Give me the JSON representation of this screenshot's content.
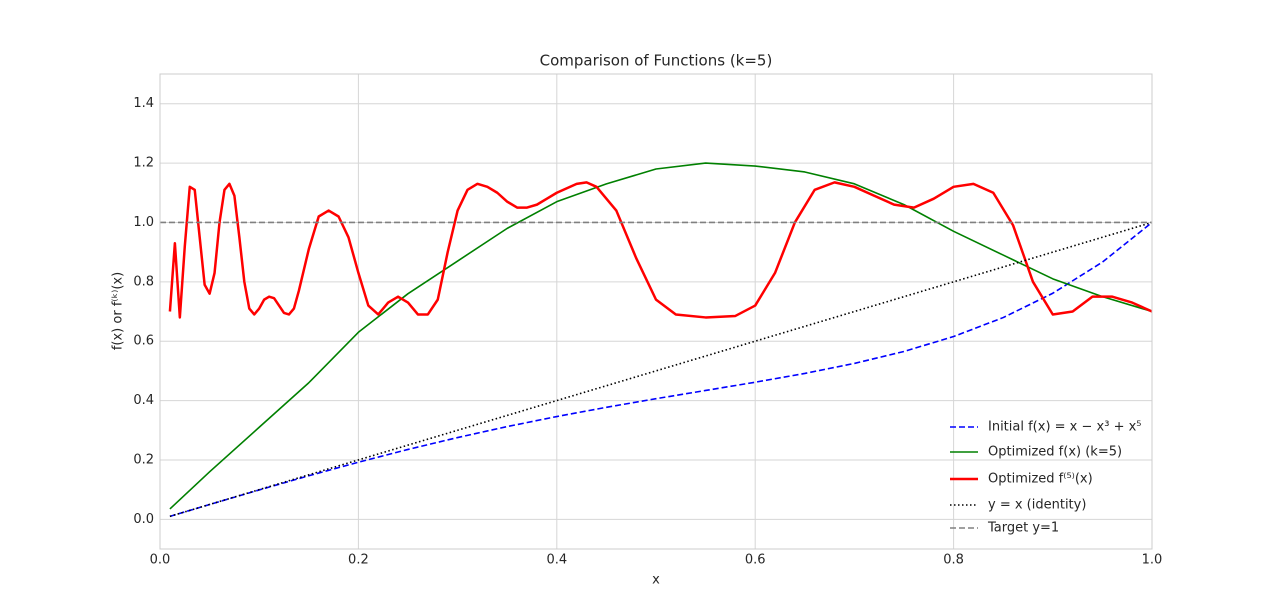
{
  "chart_data": {
    "type": "line",
    "title": "Comparison of Functions (k=5)",
    "x_label": "x",
    "y_label": "f(x) or f⁽ᵏ⁾(x)",
    "xlim": [
      0,
      1
    ],
    "ylim": [
      -0.1,
      1.5
    ],
    "xticks": [
      {
        "value": 0,
        "label": "0.0"
      },
      0.2,
      0.4,
      0.6,
      0.8,
      {
        "value": 1,
        "label": "1.0"
      }
    ],
    "yticks": [
      {
        "value": 0,
        "label": "0.0"
      },
      0.2,
      0.4,
      0.6,
      0.8,
      {
        "value": 1,
        "label": "1.0"
      },
      1.2,
      1.4
    ],
    "grid": true,
    "legend": "lower right",
    "series": [
      {
        "name": "Initial f(x) = x − x³ + x⁵",
        "color": "#0000ff",
        "linestyle": "dashed",
        "linewidth": 1.6,
        "x": [
          0.01,
          0.05,
          0.1,
          0.15,
          0.2,
          0.25,
          0.3,
          0.35,
          0.4,
          0.45,
          0.5,
          0.55,
          0.6,
          0.65,
          0.7,
          0.75,
          0.8,
          0.85,
          0.9,
          0.95,
          1.0
        ],
        "values": [
          0.01,
          0.0499,
          0.099,
          0.1467,
          0.1923,
          0.2354,
          0.2754,
          0.3124,
          0.3462,
          0.3773,
          0.4063,
          0.434,
          0.4618,
          0.4914,
          0.5251,
          0.5654,
          0.6157,
          0.6796,
          0.7615,
          0.8664,
          1.0
        ]
      },
      {
        "name": "Optimized f(x) (k=5)",
        "color": "#008000",
        "linestyle": "solid",
        "linewidth": 1.6,
        "x": [
          0.01,
          0.05,
          0.1,
          0.15,
          0.2,
          0.25,
          0.3,
          0.35,
          0.4,
          0.45,
          0.5,
          0.55,
          0.6,
          0.65,
          0.7,
          0.75,
          0.8,
          0.85,
          0.9,
          0.95,
          1.0
        ],
        "values": [
          0.035,
          0.16,
          0.31,
          0.46,
          0.63,
          0.76,
          0.87,
          0.98,
          1.07,
          1.13,
          1.18,
          1.2,
          1.19,
          1.17,
          1.13,
          1.06,
          0.97,
          0.89,
          0.81,
          0.75,
          0.7
        ]
      },
      {
        "name": "Optimized f⁽⁵⁾(x)",
        "color": "#ff0000",
        "linestyle": "solid",
        "linewidth": 2.5,
        "x": [
          0.01,
          0.015,
          0.02,
          0.025,
          0.03,
          0.035,
          0.04,
          0.045,
          0.05,
          0.055,
          0.06,
          0.065,
          0.07,
          0.075,
          0.08,
          0.085,
          0.09,
          0.095,
          0.1,
          0.105,
          0.11,
          0.115,
          0.12,
          0.125,
          0.13,
          0.135,
          0.14,
          0.15,
          0.16,
          0.17,
          0.18,
          0.19,
          0.2,
          0.21,
          0.22,
          0.23,
          0.24,
          0.25,
          0.26,
          0.27,
          0.28,
          0.29,
          0.3,
          0.31,
          0.32,
          0.33,
          0.34,
          0.35,
          0.36,
          0.37,
          0.38,
          0.39,
          0.4,
          0.42,
          0.43,
          0.44,
          0.46,
          0.48,
          0.5,
          0.52,
          0.55,
          0.58,
          0.6,
          0.62,
          0.64,
          0.66,
          0.68,
          0.7,
          0.72,
          0.74,
          0.76,
          0.78,
          0.8,
          0.82,
          0.84,
          0.86,
          0.88,
          0.9,
          0.92,
          0.94,
          0.96,
          0.98,
          1.0
        ],
        "values": [
          0.7,
          0.93,
          0.68,
          0.92,
          1.12,
          1.11,
          0.95,
          0.79,
          0.76,
          0.83,
          1.0,
          1.11,
          1.13,
          1.09,
          0.95,
          0.8,
          0.71,
          0.69,
          0.71,
          0.74,
          0.75,
          0.745,
          0.72,
          0.695,
          0.69,
          0.71,
          0.77,
          0.91,
          1.02,
          1.04,
          1.02,
          0.95,
          0.83,
          0.72,
          0.69,
          0.73,
          0.75,
          0.73,
          0.69,
          0.69,
          0.74,
          0.9,
          1.04,
          1.11,
          1.13,
          1.12,
          1.1,
          1.07,
          1.05,
          1.05,
          1.06,
          1.08,
          1.1,
          1.13,
          1.135,
          1.12,
          1.04,
          0.88,
          0.74,
          0.69,
          0.68,
          0.685,
          0.72,
          0.83,
          1.0,
          1.11,
          1.135,
          1.12,
          1.09,
          1.06,
          1.05,
          1.08,
          1.12,
          1.13,
          1.1,
          0.99,
          0.8,
          0.69,
          0.7,
          0.75,
          0.75,
          0.73,
          0.7
        ]
      },
      {
        "name": "y = x (identity)",
        "color": "#000000",
        "linestyle": "dotted",
        "linewidth": 1.6,
        "x": [
          0.01,
          1.0
        ],
        "values": [
          0.01,
          1.0
        ]
      },
      {
        "name": "Target y=1",
        "color": "#808080",
        "linestyle": "dashed",
        "linewidth": 1.6,
        "x": [
          0,
          1
        ],
        "values": [
          1,
          1
        ]
      }
    ]
  }
}
